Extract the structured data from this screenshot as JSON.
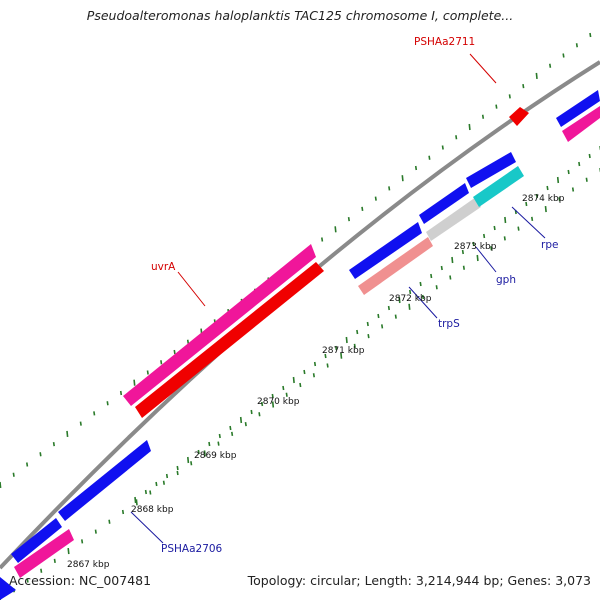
{
  "title": "Pseudoalteromonas haloplanktis TAC125 chromosome I, complete...",
  "footer": {
    "accession": "Accession: NC_007481",
    "summary": "Topology: circular; Length: 3,214,944 bp; Genes: 3,073"
  },
  "colors": {
    "backbone": "#8a8a8a",
    "dots": "#2a7a2a",
    "label_red": "#d40000",
    "label_blue": "#1a1aa0"
  },
  "position_labels": [
    "2867 kbp",
    "2868 kbp",
    "2869 kbp",
    "2870 kbp",
    "2871 kbp",
    "2872 kbp",
    "2873 kbp",
    "2874 kbp"
  ],
  "gene_labels": [
    {
      "text": "PSHAa2711",
      "color": "label_red"
    },
    {
      "text": "uvrA",
      "color": "label_red"
    },
    {
      "text": "rpe",
      "color": "label_blue"
    },
    {
      "text": "gph",
      "color": "label_blue"
    },
    {
      "text": "trpS",
      "color": "label_blue"
    },
    {
      "text": "PSHAa2706",
      "color": "label_blue"
    }
  ],
  "features": [
    {
      "name": "gene-blue",
      "color": "#1010f0"
    },
    {
      "name": "cds-pink",
      "color": "#f0169a"
    },
    {
      "name": "cds-red",
      "color": "#f00000"
    },
    {
      "name": "trna-salmon",
      "color": "#f09090"
    },
    {
      "name": "rna-grey",
      "color": "#cfcfcf"
    },
    {
      "name": "misc-cyan",
      "color": "#18c8c8"
    }
  ]
}
